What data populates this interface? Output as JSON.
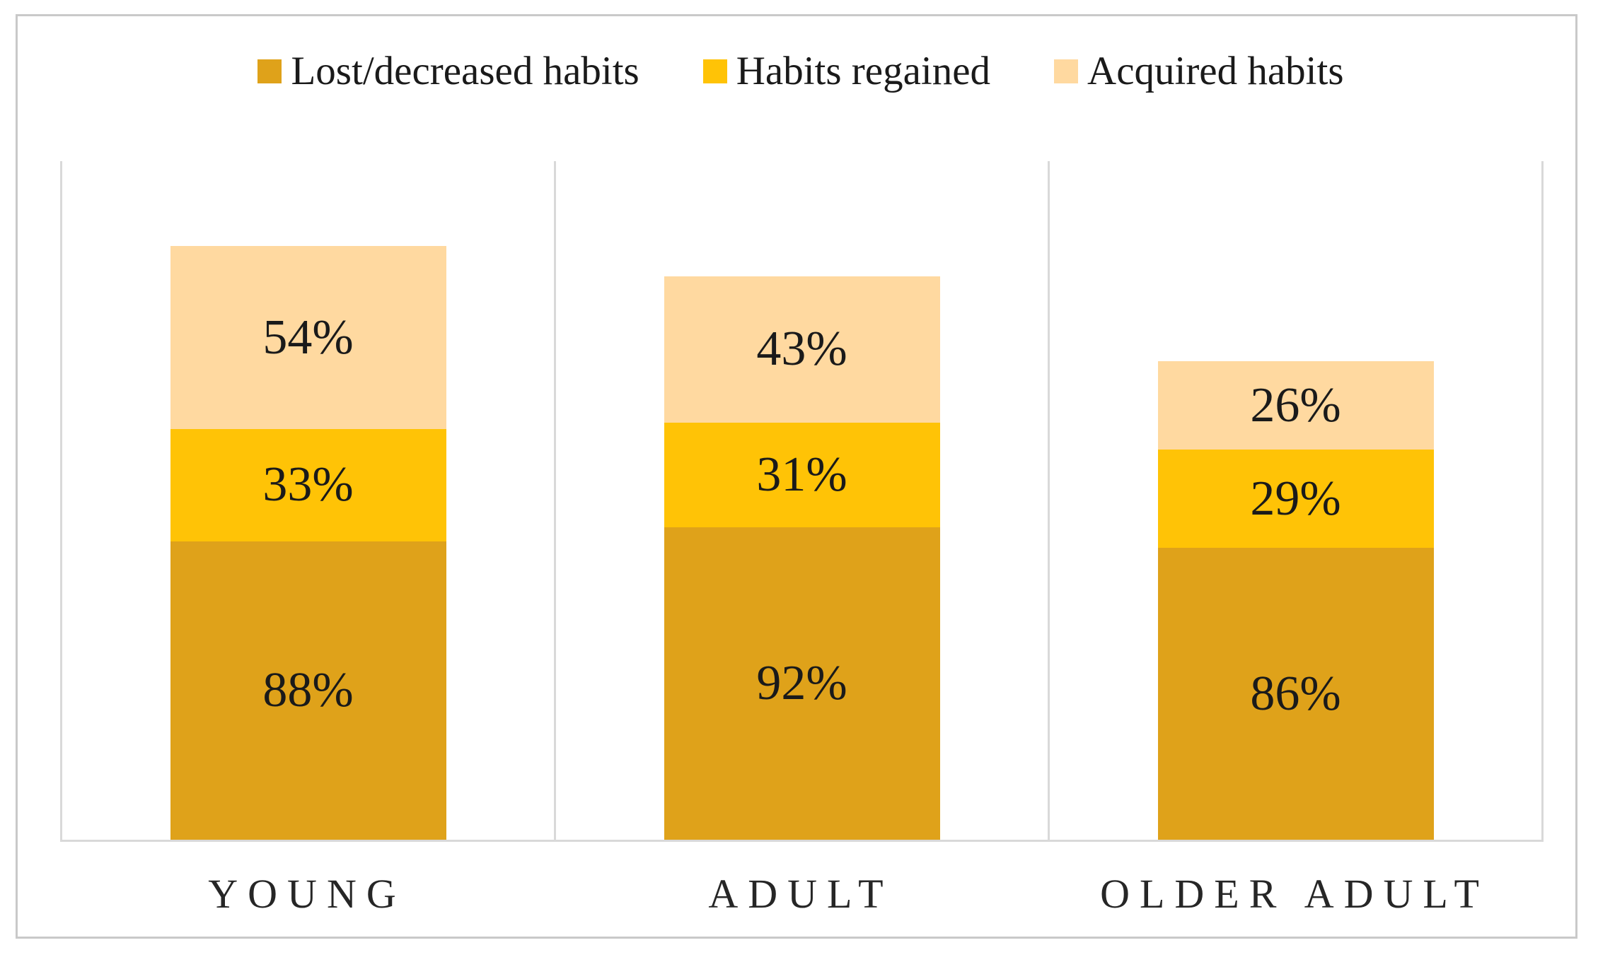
{
  "figure": {
    "background": "#ffffff",
    "frame_color": "#c9c9c9",
    "axis_color": "#d9d9d9",
    "text_color": "#1a1a1a",
    "category_text_color": "#262626"
  },
  "chart_data": {
    "type": "bar",
    "stacked": true,
    "orientation": "vertical",
    "categories": [
      "YOUNG",
      "ADULT",
      "OLDER ADULT"
    ],
    "series": [
      {
        "name": "Lost/decreased habits",
        "color": "#dfa21a",
        "values": [
          88,
          92,
          86
        ]
      },
      {
        "name": "Habits regained",
        "color": "#ffc306",
        "values": [
          33,
          31,
          29
        ]
      },
      {
        "name": "Acquired habits",
        "color": "#ffd9a0",
        "values": [
          54,
          43,
          26
        ]
      }
    ],
    "value_suffix": "%",
    "data_labels": true,
    "ylim": [
      0,
      200
    ],
    "y_axis_visible": false,
    "grid": "vertical panel dividers only",
    "legend_position": "top"
  }
}
